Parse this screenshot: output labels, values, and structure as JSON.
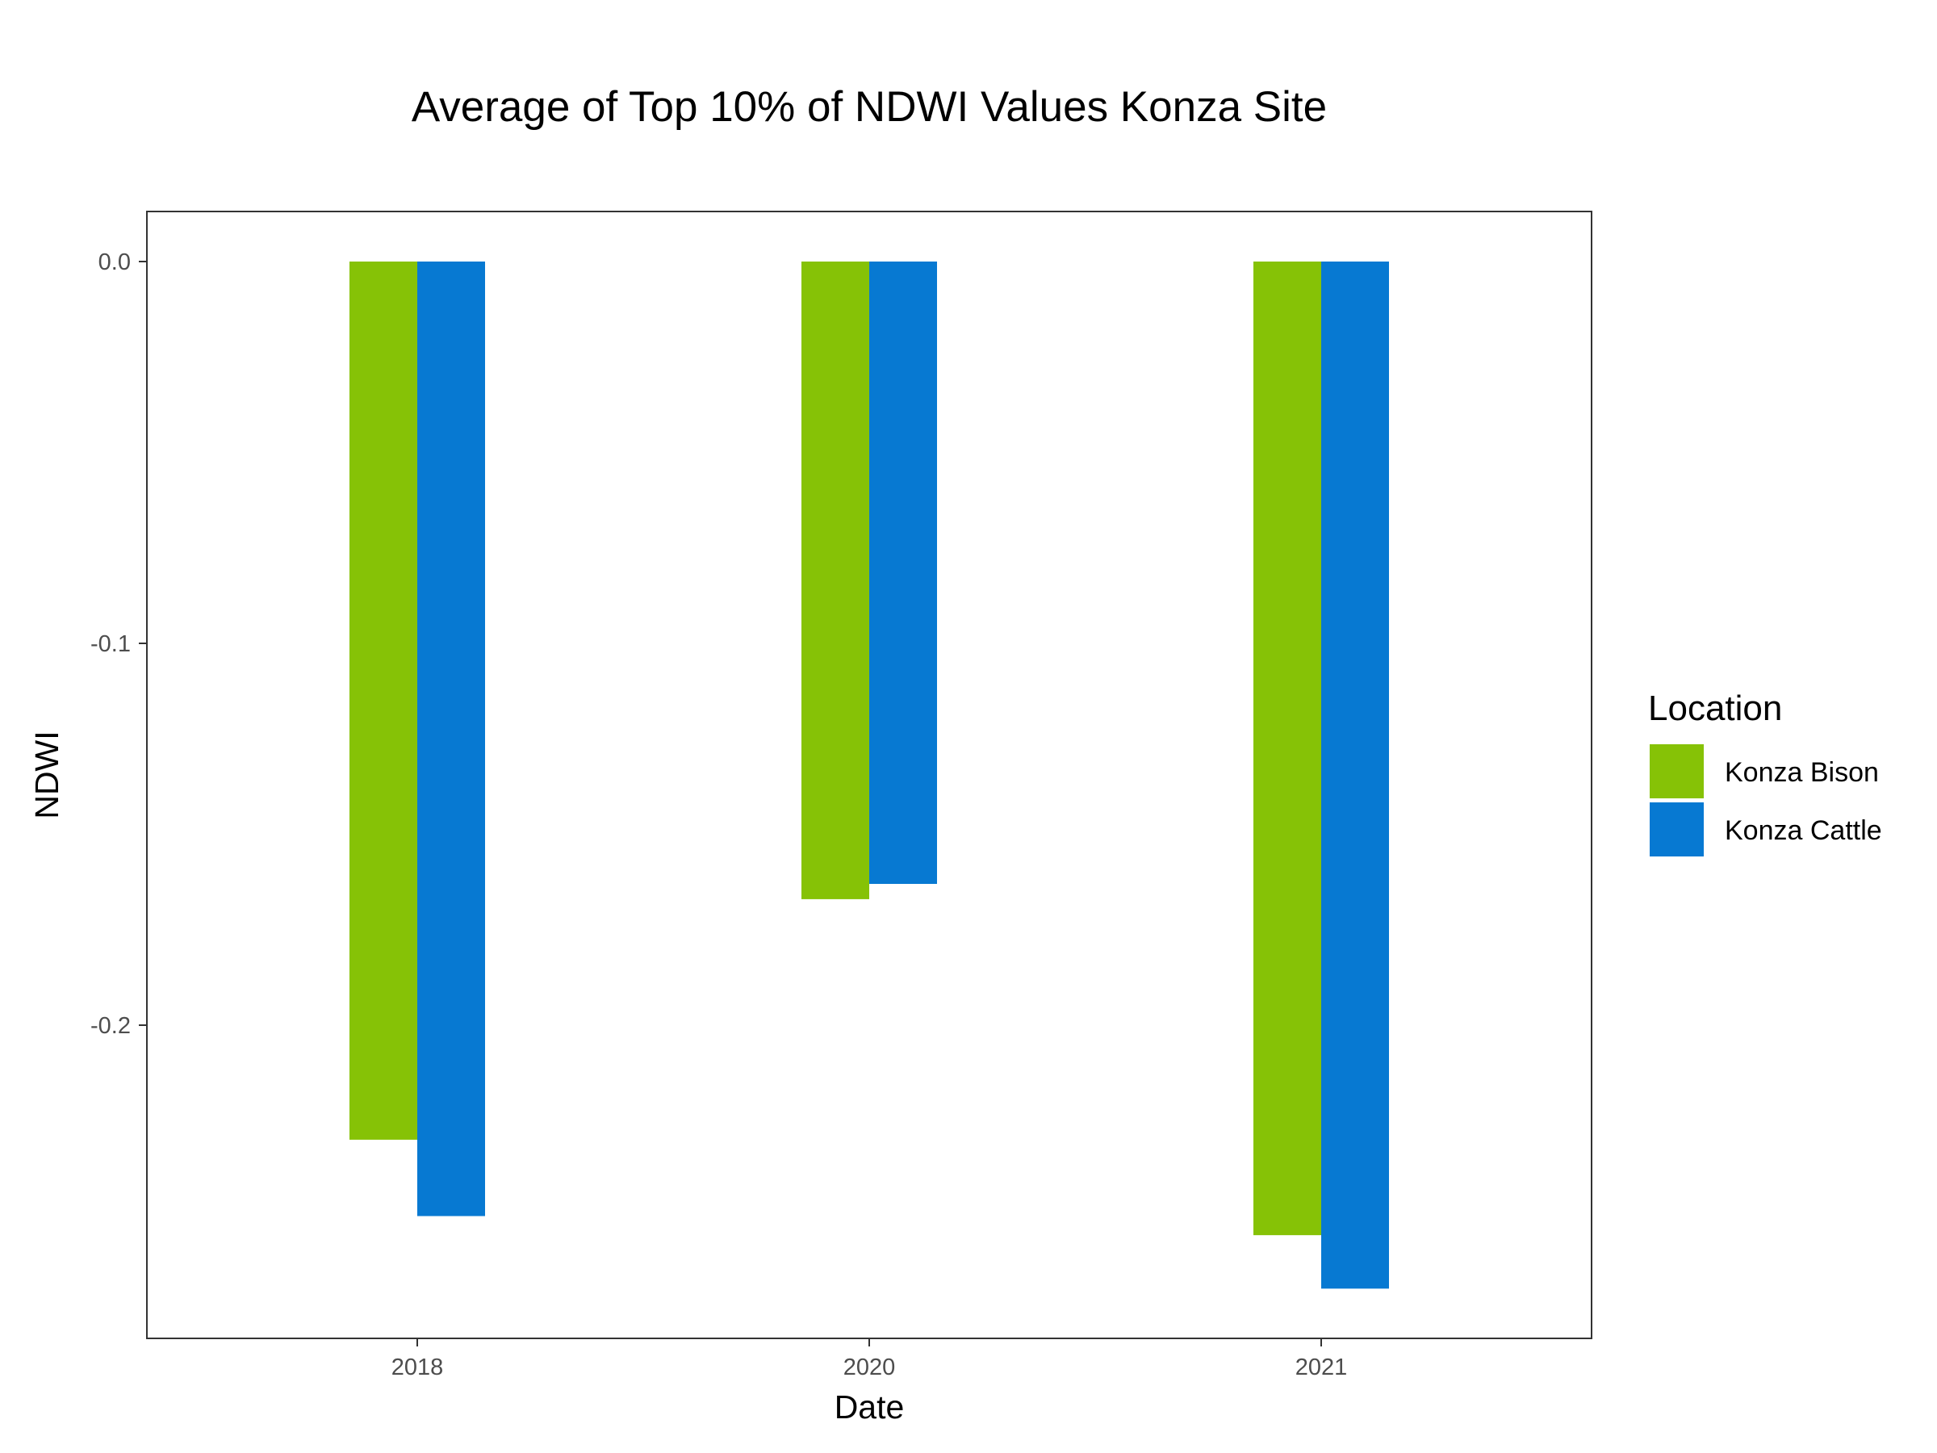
{
  "chart_data": {
    "type": "bar",
    "title": "Average of Top 10% of NDWI Values Konza Site",
    "xlabel": "Date",
    "ylabel": "NDWI",
    "categories": [
      "2018",
      "2020",
      "2021"
    ],
    "series": [
      {
        "name": "Konza Bison",
        "color": "#86C206",
        "values": [
          -0.23,
          -0.167,
          -0.255
        ]
      },
      {
        "name": "Konza Cattle",
        "color": "#0779D2",
        "values": [
          -0.25,
          -0.163,
          -0.269
        ]
      }
    ],
    "yticks": [
      0.0,
      -0.1,
      -0.2
    ],
    "ytick_labels": [
      "0.0",
      "-0.1",
      "-0.2"
    ],
    "ylim": [
      -0.2815,
      0.0135
    ],
    "grid": false,
    "legend": {
      "title": "Location",
      "position": "right"
    }
  }
}
